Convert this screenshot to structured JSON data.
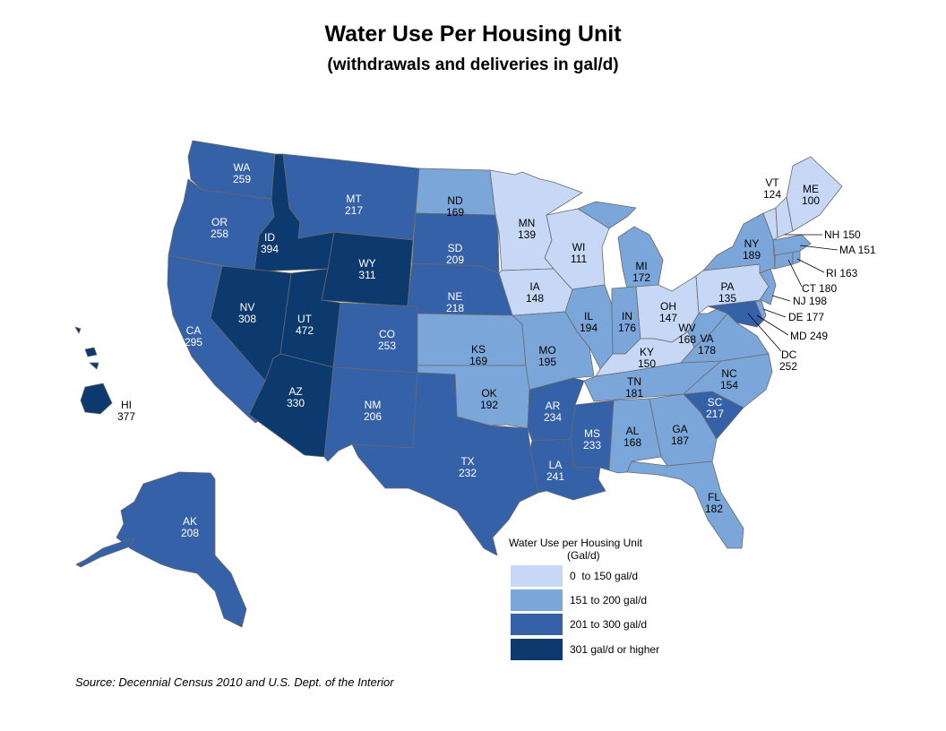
{
  "title": "Water Use Per Housing Unit",
  "subtitle": "(withdrawals and deliveries in gal/d)",
  "legend": {
    "title_line1": "Water Use per Housing Unit",
    "title_line2": "(Gal/d)",
    "items": [
      {
        "label": "0  to 150 gal/d",
        "color": "#c6d8f6"
      },
      {
        "label": "151 to 200 gal/d",
        "color": "#7ba6d9"
      },
      {
        "label": "201 to 300 gal/d",
        "color": "#3561a8"
      },
      {
        "label": "301 gal/d or higher",
        "color": "#0d3a6e"
      }
    ]
  },
  "source": "Source: Decennial Census 2010 and U.S. Dept. of the Interior",
  "states": {
    "WA": {
      "abbr": "WA",
      "value": "259"
    },
    "OR": {
      "abbr": "OR",
      "value": "258"
    },
    "CA": {
      "abbr": "CA",
      "value": "295"
    },
    "ID": {
      "abbr": "ID",
      "value": "394"
    },
    "NV": {
      "abbr": "NV",
      "value": "308"
    },
    "MT": {
      "abbr": "MT",
      "value": "217"
    },
    "WY": {
      "abbr": "WY",
      "value": "311"
    },
    "UT": {
      "abbr": "UT",
      "value": "472"
    },
    "AZ": {
      "abbr": "AZ",
      "value": "330"
    },
    "CO": {
      "abbr": "CO",
      "value": "253"
    },
    "NM": {
      "abbr": "NM",
      "value": "206"
    },
    "ND": {
      "abbr": "ND",
      "value": "169"
    },
    "SD": {
      "abbr": "SD",
      "value": "209"
    },
    "NE": {
      "abbr": "NE",
      "value": "218"
    },
    "KS": {
      "abbr": "KS",
      "value": "169"
    },
    "OK": {
      "abbr": "OK",
      "value": "192"
    },
    "TX": {
      "abbr": "TX",
      "value": "232"
    },
    "MN": {
      "abbr": "MN",
      "value": "139"
    },
    "IA": {
      "abbr": "IA",
      "value": "148"
    },
    "MO": {
      "abbr": "MO",
      "value": "195"
    },
    "AR": {
      "abbr": "AR",
      "value": "234"
    },
    "LA": {
      "abbr": "LA",
      "value": "241"
    },
    "WI": {
      "abbr": "WI",
      "value": "111"
    },
    "IL": {
      "abbr": "IL",
      "value": "194"
    },
    "MI": {
      "abbr": "MI",
      "value": "172"
    },
    "IN": {
      "abbr": "IN",
      "value": "176"
    },
    "OH": {
      "abbr": "OH",
      "value": "147"
    },
    "KY": {
      "abbr": "KY",
      "value": "150"
    },
    "TN": {
      "abbr": "TN",
      "value": "181"
    },
    "MS": {
      "abbr": "MS",
      "value": "233"
    },
    "AL": {
      "abbr": "AL",
      "value": "168"
    },
    "GA": {
      "abbr": "GA",
      "value": "187"
    },
    "FL": {
      "abbr": "FL",
      "value": "182"
    },
    "SC": {
      "abbr": "SC",
      "value": "217"
    },
    "NC": {
      "abbr": "NC",
      "value": "154"
    },
    "VA": {
      "abbr": "VA",
      "value": "178"
    },
    "WV": {
      "abbr": "WV",
      "value": "168"
    },
    "PA": {
      "abbr": "PA",
      "value": "135"
    },
    "NY": {
      "abbr": "NY",
      "value": "189"
    },
    "VT": {
      "abbr": "VT",
      "value": "124"
    },
    "ME": {
      "abbr": "ME",
      "value": "100"
    },
    "AK": {
      "abbr": "AK",
      "value": "208"
    },
    "HI": {
      "abbr": "HI",
      "value": "377"
    }
  },
  "callouts": {
    "NH": "NH 150",
    "MA": "MA 151",
    "RI": "RI 163",
    "CT": "CT 180",
    "NJ": "NJ  198",
    "DE": "DE 177",
    "MD": "MD 249",
    "DC_abbr": "DC",
    "DC_value": "252"
  }
}
